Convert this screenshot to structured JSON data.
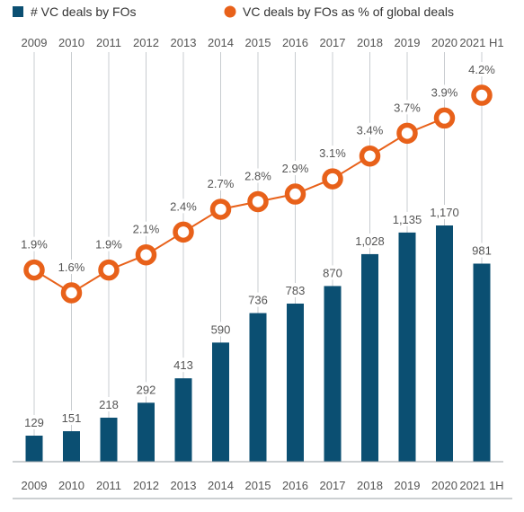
{
  "chart_data": {
    "type": "bar+line",
    "title": "",
    "categories": [
      "2009",
      "2010",
      "2011",
      "2012",
      "2013",
      "2014",
      "2015",
      "2016",
      "2017",
      "2018",
      "2019",
      "2020",
      "2021 H1"
    ],
    "bottom_categories": [
      "2009",
      "2010",
      "2011",
      "2012",
      "2013",
      "2014",
      "2015",
      "2016",
      "2017",
      "2018",
      "2019",
      "2020",
      "2021 1H"
    ],
    "series": [
      {
        "name": "# VC deals by FOs",
        "type": "bar",
        "color": "#0b4f72",
        "values": [
          129,
          151,
          218,
          292,
          413,
          590,
          736,
          783,
          870,
          1028,
          1135,
          1170,
          981
        ],
        "labels": [
          "129",
          "151",
          "218",
          "292",
          "413",
          "590",
          "736",
          "783",
          "870",
          "1,028",
          "1,135",
          "1,170",
          "981"
        ]
      },
      {
        "name": "VC deals by FOs as % of global deals",
        "type": "line",
        "color": "#e8611a",
        "values": [
          1.9,
          1.6,
          1.9,
          2.1,
          2.4,
          2.7,
          2.8,
          2.9,
          3.1,
          3.4,
          3.7,
          3.9,
          4.2
        ],
        "labels": [
          "1.9%",
          "1.6%",
          "1.9%",
          "2.1%",
          "2.4%",
          "2.7%",
          "2.8%",
          "2.9%",
          "3.1%",
          "3.4%",
          "3.7%",
          "3.9%",
          "4.2%"
        ],
        "connected_through_index": 11
      }
    ],
    "legend_position": "top-left",
    "grid": "vertical"
  }
}
